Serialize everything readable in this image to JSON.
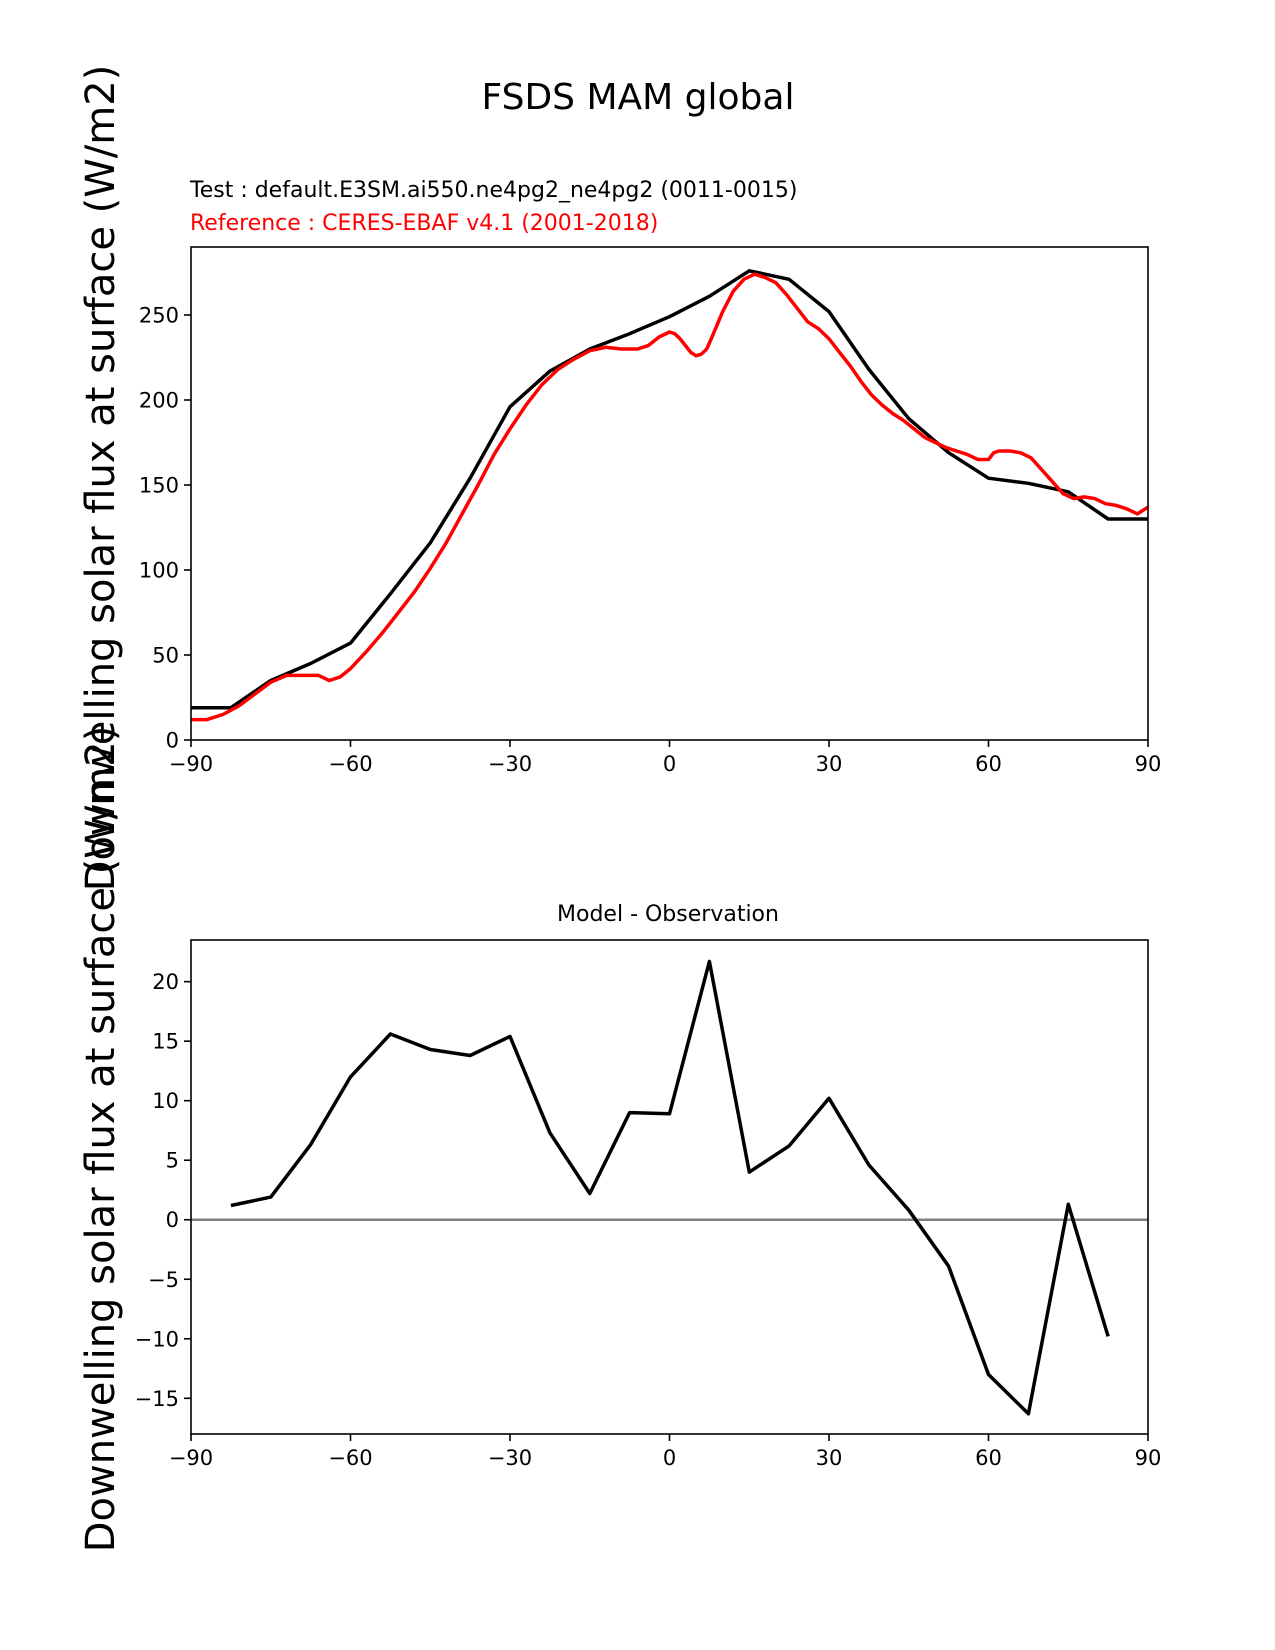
{
  "page_title": "FSDS MAM global",
  "chart_data": [
    {
      "type": "line",
      "test_label": "Test : default.E3SM.ai550.ne4pg2_ne4pg2 (0011-0015)",
      "reference_label": "Reference : CERES-EBAF v4.1 (2001-2018)",
      "ylabel": "Downwelling solar flux at surface (W/m2)",
      "xlim": [
        -90,
        90
      ],
      "ylim": [
        0,
        290
      ],
      "xticks": [
        -90,
        -60,
        -30,
        0,
        30,
        60,
        90
      ],
      "xtick_labels": [
        "−90",
        "−60",
        "−30",
        "0",
        "30",
        "60",
        "90"
      ],
      "yticks": [
        0,
        50,
        100,
        150,
        200,
        250
      ],
      "ytick_labels": [
        "0",
        "50",
        "100",
        "150",
        "200",
        "250"
      ],
      "series": [
        {
          "color": "#000000",
          "x": [
            -90,
            -82.5,
            -75,
            -67.5,
            -60,
            -52.5,
            -45,
            -37.5,
            -30,
            -22.5,
            -15,
            -7.5,
            0,
            7.5,
            15,
            22.5,
            30,
            37.5,
            45,
            52.5,
            60,
            67.5,
            75,
            82.5,
            90
          ],
          "y": [
            19,
            19,
            35,
            45,
            57,
            86,
            116,
            154,
            196,
            217,
            230,
            239,
            249,
            261,
            276,
            271,
            252,
            218,
            189,
            169,
            154,
            151,
            146,
            130,
            130
          ]
        },
        {
          "color": "#ff0000",
          "x": [
            -90,
            -87,
            -84,
            -81,
            -78,
            -75,
            -72,
            -69,
            -66,
            -64,
            -62,
            -60,
            -57,
            -54,
            -51,
            -48,
            -45,
            -42,
            -39,
            -36,
            -33,
            -30,
            -27,
            -24,
            -21,
            -18,
            -15,
            -12,
            -9,
            -6,
            -4,
            -2,
            0,
            1,
            2,
            3,
            4,
            5,
            6,
            7,
            8,
            10,
            12,
            14,
            16,
            18,
            20,
            22,
            24,
            26,
            28,
            30,
            32,
            34,
            36,
            38,
            40,
            42,
            44,
            46,
            48,
            50,
            52,
            54,
            56,
            58,
            60,
            61,
            62,
            64,
            66,
            68,
            70,
            72,
            74,
            76,
            78,
            80,
            82,
            84,
            86,
            88,
            90
          ],
          "y": [
            12,
            12,
            15,
            20,
            27,
            34,
            38,
            38,
            38,
            35,
            37,
            42,
            52,
            63,
            75,
            87,
            101,
            116,
            133,
            150,
            168,
            183,
            197,
            209,
            218,
            224,
            229,
            231,
            230,
            230,
            232,
            237,
            240,
            239,
            236,
            232,
            228,
            226,
            227,
            230,
            237,
            252,
            264,
            271,
            274,
            272,
            269,
            262,
            254,
            246,
            242,
            236,
            228,
            220,
            211,
            203,
            197,
            192,
            188,
            183,
            178,
            175,
            172,
            170,
            168,
            165,
            165,
            169,
            170,
            170,
            169,
            166,
            159,
            152,
            145,
            142,
            143,
            142,
            139,
            138,
            136,
            133,
            137
          ]
        }
      ]
    },
    {
      "type": "line",
      "title": "Model - Observation",
      "ylabel": "Downwelling solar flux at surface (W/m2)",
      "xlim": [
        -90,
        90
      ],
      "ylim": [
        -18,
        23.5
      ],
      "xticks": [
        -90,
        -60,
        -30,
        0,
        30,
        60,
        90
      ],
      "xtick_labels": [
        "−90",
        "−60",
        "−30",
        "0",
        "30",
        "60",
        "90"
      ],
      "yticks": [
        -15,
        -10,
        -5,
        0,
        5,
        10,
        15,
        20
      ],
      "ytick_labels": [
        "−15",
        "−10",
        "−5",
        "0",
        "5",
        "10",
        "15",
        "20"
      ],
      "zero_line_color": "#808080",
      "series": [
        {
          "color": "#000000",
          "x": [
            -82.5,
            -75,
            -67.5,
            -60,
            -52.5,
            -45,
            -37.5,
            -30,
            -22.5,
            -15,
            -7.5,
            0,
            7.5,
            15,
            22.5,
            30,
            37.5,
            45,
            52.5,
            60,
            67.5,
            75,
            82.5
          ],
          "y": [
            1.2,
            1.9,
            6.3,
            12.0,
            15.6,
            14.3,
            13.8,
            15.4,
            7.3,
            2.2,
            9.0,
            8.9,
            21.7,
            4.0,
            6.2,
            10.2,
            4.6,
            0.8,
            -3.9,
            -13.0,
            -16.3,
            1.3,
            -9.8
          ]
        }
      ]
    }
  ]
}
